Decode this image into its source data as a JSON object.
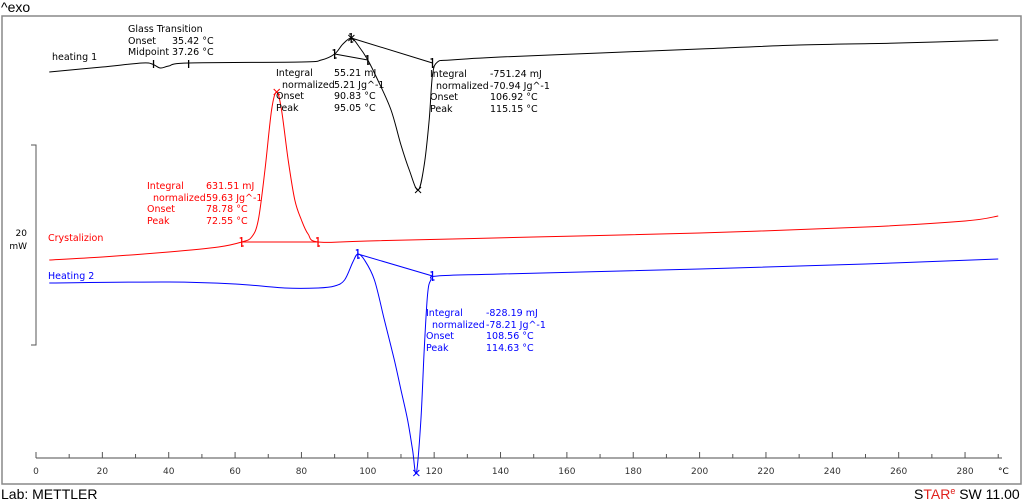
{
  "header": {
    "exo_label": "^exo"
  },
  "footer": {
    "lab": "Lab: METTLER",
    "software_star": "STAR",
    "software_e": "e",
    "software_rest": " SW 11.00"
  },
  "colors": {
    "heating1": "#000000",
    "crystallization": "#ff0000",
    "heating2": "#0000ff",
    "brand_red": "#e0201b"
  },
  "chart_data": {
    "type": "line",
    "title": "",
    "xlabel": "°C",
    "xlim": [
      0,
      290
    ],
    "x_ticks": [
      "0",
      "20",
      "40",
      "60",
      "80",
      "100",
      "120",
      "140",
      "160",
      "180",
      "200",
      "220",
      "240",
      "260",
      "280"
    ],
    "scale_bar": {
      "value": "20",
      "unit": "mW"
    },
    "grid": false,
    "series": [
      {
        "name": "heating 1",
        "color": "#000000",
        "points": [
          [
            4,
            22.8
          ],
          [
            20,
            23.3
          ],
          [
            32,
            23.7
          ],
          [
            35,
            23.6
          ],
          [
            37.5,
            23.2
          ],
          [
            40,
            23.4
          ],
          [
            46,
            23.7
          ],
          [
            80,
            23.8
          ],
          [
            86,
            24.0
          ],
          [
            90,
            24.6
          ],
          [
            92.5,
            25.6
          ],
          [
            95,
            26.2
          ],
          [
            97,
            25.5
          ],
          [
            100,
            24.0
          ],
          [
            103,
            22.0
          ],
          [
            107,
            19.0
          ],
          [
            110,
            15.5
          ],
          [
            112.5,
            13.0
          ],
          [
            115.15,
            11.0
          ],
          [
            117,
            13.5
          ],
          [
            118.5,
            18
          ],
          [
            119.5,
            22.5
          ],
          [
            121,
            23.8
          ],
          [
            125,
            24.0
          ],
          [
            140,
            24.3
          ],
          [
            170,
            24.7
          ],
          [
            200,
            25.1
          ],
          [
            230,
            25.5
          ],
          [
            260,
            25.7
          ],
          [
            290,
            26.0
          ]
        ],
        "baselines": [
          [
            [
              90,
              24.6
            ],
            [
              100,
              24.0
            ]
          ],
          [
            [
              95,
              26.2
            ],
            [
              119.5,
              23.7
            ]
          ]
        ],
        "markers": [
          [
            95.05,
            26.2
          ],
          [
            115.15,
            11.0
          ]
        ]
      },
      {
        "name": "Crystalizion",
        "color": "#ff0000",
        "points": [
          [
            4,
            4.0
          ],
          [
            20,
            4.3
          ],
          [
            40,
            4.8
          ],
          [
            55,
            5.3
          ],
          [
            62,
            5.8
          ],
          [
            65,
            6.3
          ],
          [
            67,
            8
          ],
          [
            69,
            13
          ],
          [
            71,
            19
          ],
          [
            72.55,
            20.8
          ],
          [
            74,
            19
          ],
          [
            76,
            14
          ],
          [
            78,
            10
          ],
          [
            80,
            8
          ],
          [
            82,
            6.6
          ],
          [
            85,
            5.8
          ],
          [
            100,
            5.9
          ],
          [
            150,
            6.3
          ],
          [
            200,
            6.7
          ],
          [
            250,
            7.3
          ],
          [
            280,
            7.9
          ],
          [
            290,
            8.4
          ]
        ],
        "baselines": [
          [
            [
              62,
              5.8
            ],
            [
              85,
              5.8
            ]
          ]
        ],
        "markers": [
          [
            72.55,
            20.8
          ]
        ]
      },
      {
        "name": "Heating 2",
        "color": "#0000ff",
        "points": [
          [
            4,
            1.7
          ],
          [
            40,
            1.8
          ],
          [
            60,
            1.6
          ],
          [
            75,
            1.2
          ],
          [
            85,
            1.2
          ],
          [
            90,
            1.4
          ],
          [
            93,
            2.0
          ],
          [
            95.5,
            3.8
          ],
          [
            97,
            4.6
          ],
          [
            99,
            4.0
          ],
          [
            102,
            2.0
          ],
          [
            105,
            -2.0
          ],
          [
            108,
            -6
          ],
          [
            110,
            -9
          ],
          [
            112,
            -12
          ],
          [
            113.5,
            -15
          ],
          [
            114.63,
            -17.3
          ],
          [
            116,
            -12
          ],
          [
            117,
            -5
          ],
          [
            118,
            0.5
          ],
          [
            119,
            2.0
          ],
          [
            121,
            2.4
          ],
          [
            140,
            2.6
          ],
          [
            200,
            3.1
          ],
          [
            250,
            3.6
          ],
          [
            290,
            4.1
          ]
        ],
        "baselines": [
          [
            [
              97,
              4.6
            ],
            [
              119.5,
              2.4
            ]
          ]
        ],
        "markers": [
          [
            114.63,
            -17.3
          ]
        ]
      }
    ],
    "annotations": {
      "glass_transition": {
        "title": "Glass Transition",
        "onset_label": "Onset",
        "onset": "35.42 °C",
        "midpoint_label": "Midpoint",
        "midpoint": "37.26 °C"
      },
      "h1_peak1": {
        "integral_label": "Integral",
        "integral": "55.21 mJ",
        "normalized_label": "normalized",
        "normalized": "5.21 Jg^-1",
        "onset_label": "Onset",
        "onset": "90.83 °C",
        "peak_label": "Peak",
        "peak": "95.05 °C"
      },
      "h1_peak2": {
        "integral_label": "Integral",
        "integral": "-751.24 mJ",
        "normalized_label": "normalized",
        "normalized": "-70.94 Jg^-1",
        "onset_label": "Onset",
        "onset": "106.92 °C",
        "peak_label": "Peak",
        "peak": "115.15 °C"
      },
      "cryst": {
        "integral_label": "Integral",
        "integral": "631.51 mJ",
        "normalized_label": "normalized",
        "normalized": "59.63 Jg^-1",
        "onset_label": "Onset",
        "onset": "78.78 °C",
        "peak_label": "Peak",
        "peak": "72.55 °C"
      },
      "h2": {
        "integral_label": "Integral",
        "integral": "-828.19 mJ",
        "normalized_label": "normalized",
        "normalized": "-78.21 Jg^-1",
        "onset_label": "Onset",
        "onset": "108.56 °C",
        "peak_label": "Peak",
        "peak": "114.63 °C"
      }
    }
  }
}
